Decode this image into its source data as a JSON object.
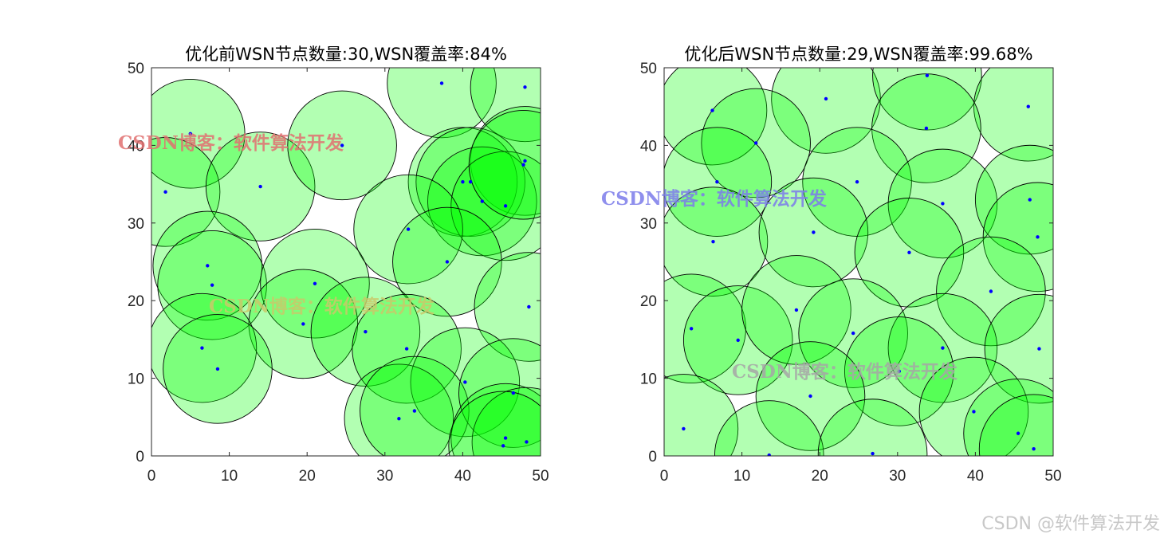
{
  "footer": "CSDN @软件算法开发",
  "colors": {
    "fill": "#00ff00",
    "circle_stroke": "#000000",
    "node": "#0000ff",
    "axis": "#262626"
  },
  "chart_data": [
    {
      "type": "scatter",
      "title": "优化前WSN节点数量:30,WSN覆盖率:84%",
      "xlim": [
        0,
        50
      ],
      "ylim": [
        0,
        50
      ],
      "xticks": [
        0,
        10,
        20,
        30,
        40,
        50
      ],
      "yticks": [
        0,
        10,
        20,
        30,
        40,
        50
      ],
      "radius": 7,
      "fill_opacity": 0.3,
      "watermarks": [
        {
          "text": "CSDN博客：软件算法开发",
          "color": "#e07070"
        },
        {
          "text": "CSDN博客：软件算法开发",
          "color": "#c9c96a"
        }
      ],
      "nodes": [
        [
          5,
          41.5
        ],
        [
          1.8,
          34
        ],
        [
          14,
          34.7
        ],
        [
          24.5,
          40
        ],
        [
          37.3,
          48
        ],
        [
          48,
          47.5
        ],
        [
          48,
          38
        ],
        [
          40,
          35.3
        ],
        [
          41,
          35.3
        ],
        [
          42.5,
          32.8
        ],
        [
          45.5,
          32.2
        ],
        [
          33,
          29.2
        ],
        [
          38,
          25
        ],
        [
          7.2,
          24.5
        ],
        [
          7.8,
          22
        ],
        [
          21,
          22.2
        ],
        [
          19.5,
          17
        ],
        [
          27.5,
          16
        ],
        [
          48.5,
          19.2
        ],
        [
          6.5,
          13.9
        ],
        [
          8.5,
          11.2
        ],
        [
          32.8,
          13.8
        ],
        [
          40.3,
          9.5
        ],
        [
          31.8,
          4.8
        ],
        [
          33.8,
          5.8
        ],
        [
          46.5,
          8.1
        ],
        [
          45.5,
          2.3
        ],
        [
          48.2,
          1.8
        ],
        [
          45.2,
          1.3
        ],
        [
          47.8,
          37.5
        ]
      ]
    },
    {
      "type": "scatter",
      "title": "优化后WSN节点数量:29,WSN覆盖率:99.68%",
      "xlim": [
        0,
        50
      ],
      "ylim": [
        0,
        50
      ],
      "xticks": [
        0,
        10,
        20,
        30,
        40,
        50
      ],
      "yticks": [
        0,
        10,
        20,
        30,
        40,
        50
      ],
      "radius": 7,
      "fill_opacity": 0.3,
      "watermarks": [
        {
          "text": "CSDN博客：软件算法开发",
          "color": "#7b7bea"
        },
        {
          "text": "CSDN博客：软件算法开发",
          "color": "#a6a6a6"
        }
      ],
      "nodes": [
        [
          6.2,
          44.5
        ],
        [
          20.8,
          46
        ],
        [
          33.8,
          49
        ],
        [
          46.8,
          45
        ],
        [
          11.8,
          40.3
        ],
        [
          33.7,
          42.2
        ],
        [
          6.8,
          35.3
        ],
        [
          24.8,
          35.3
        ],
        [
          35.8,
          32.5
        ],
        [
          47,
          33
        ],
        [
          6.3,
          27.6
        ],
        [
          19.2,
          28.8
        ],
        [
          31.5,
          26.2
        ],
        [
          48,
          28.2
        ],
        [
          42,
          21.2
        ],
        [
          3.5,
          16.4
        ],
        [
          9.5,
          14.9
        ],
        [
          17,
          18.8
        ],
        [
          24.3,
          15.8
        ],
        [
          35.8,
          13.9
        ],
        [
          48.2,
          13.8
        ],
        [
          30.2,
          10.9
        ],
        [
          18.8,
          7.7
        ],
        [
          39.8,
          5.7
        ],
        [
          2.5,
          3.5
        ],
        [
          45.5,
          2.9
        ],
        [
          47.5,
          0.9
        ],
        [
          13.5,
          0.1
        ],
        [
          26.8,
          0.3
        ]
      ]
    }
  ]
}
